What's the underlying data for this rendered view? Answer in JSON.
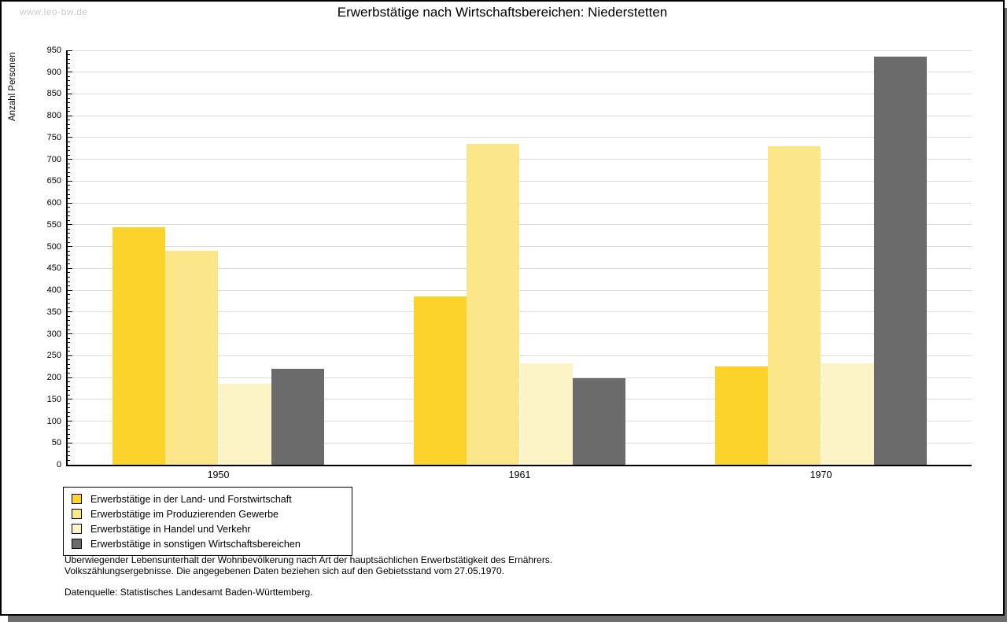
{
  "page": {
    "watermark": "www.leo-bw.de",
    "title": "Erwerbstätige nach Wirtschaftsbereichen: Niederstetten"
  },
  "chart_data": {
    "type": "bar",
    "title": "Erwerbstätige nach Wirtschaftsbereichen: Niederstetten",
    "xlabel": "",
    "ylabel": "Anzahl Personen",
    "categories": [
      "1950",
      "1961",
      "1970"
    ],
    "series": [
      {
        "name": "Erwerbstätige in der Land- und Forstwirtschaft",
        "color": "#FCD32B",
        "values": [
          545,
          385,
          225
        ]
      },
      {
        "name": "Erwerbstätige im Produzierenden Gewerbe",
        "color": "#FBE78A",
        "values": [
          490,
          735,
          730
        ]
      },
      {
        "name": "Erwerbstätige in Handel und Verkehr",
        "color": "#FCF4C7",
        "values": [
          185,
          232,
          232
        ]
      },
      {
        "name": "Erwerbstätige in sonstigen Wirtschaftsbereichen",
        "color": "#6B6B6B",
        "values": [
          220,
          198,
          935
        ]
      }
    ],
    "ylim": [
      0,
      950
    ],
    "yticks": [
      0,
      50,
      100,
      150,
      200,
      250,
      300,
      350,
      400,
      450,
      500,
      550,
      600,
      650,
      700,
      750,
      800,
      850,
      900,
      950
    ],
    "ytick_major": 50,
    "ytick_minor": 10,
    "grid": true,
    "legend_position": "bottom-left"
  },
  "footer": {
    "note_line1": "Überwiegender Lebensunterhalt der Wohnbevölkerung nach Art der hauptsächlichen Erwerbstätigkeit des Ernährers.",
    "note_line2": "Volkszählungsergebnisse. Die angegebenen Daten beziehen sich auf den Gebietsstand vom 27.05.1970.",
    "source": "Datenquelle: Statistisches Landesamt Baden-Württemberg."
  },
  "colors": {
    "grid": "#DBDBDB",
    "axis": "#000000",
    "watermark": "#CBCBCB",
    "page_background": "#FFFFFF",
    "shadow": "#6E6E6E"
  }
}
